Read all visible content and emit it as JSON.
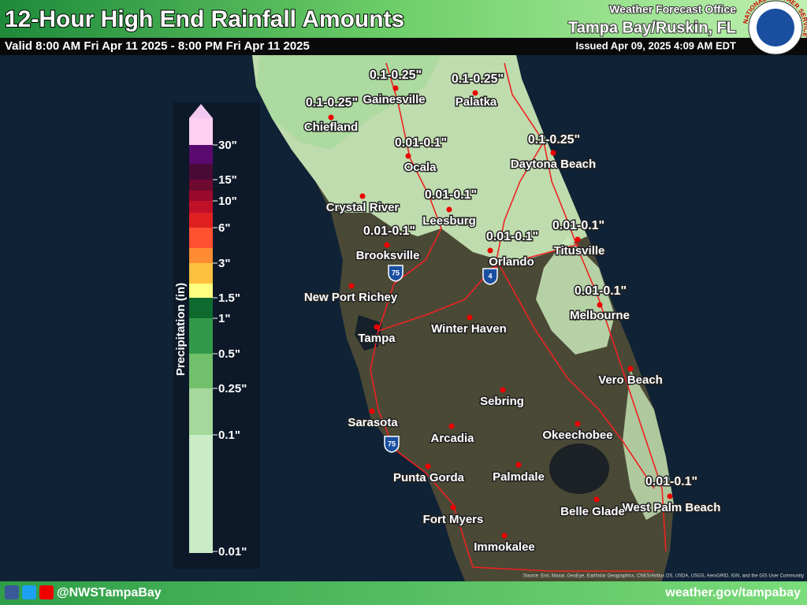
{
  "header": {
    "title": "12-Hour High End Rainfall Amounts",
    "valid": "Valid 8:00 AM Fri Apr 11 2025 - 8:00 PM Fri Apr 11 2025",
    "office": "Weather Forecast Office",
    "location": "Tampa Bay/Ruskin, FL",
    "issued": "Issued Apr 09, 2025 4:09 AM EDT",
    "logo": "NATIONAL WEATHER SERVICE"
  },
  "legend": {
    "title": "Precipitation (in)",
    "labels": [
      "30\"",
      "15\"",
      "10\"",
      "6\"",
      "3\"",
      "1.5\"",
      "1\"",
      "0.5\"",
      "0.25\"",
      "0.1\"",
      "0.01\""
    ]
  },
  "map": {
    "cities": [
      "Gainesville",
      "Palatka",
      "Chiefland",
      "Ocala",
      "Daytona Beach",
      "Crystal River",
      "Leesburg",
      "Brooksville",
      "Orlando",
      "Titusville",
      "New Port Richey",
      "Melbourne",
      "Winter Haven",
      "Tampa",
      "Vero Beach",
      "Sebring",
      "Sarasota",
      "Okeechobee",
      "Arcadia",
      "Punta Gorda",
      "Palmdale",
      "West Palm Beach",
      "Belle Glade",
      "Fort Myers",
      "Immokalee"
    ],
    "amounts": [
      "0.1-0.25\"",
      "0.1-0.25\"",
      "0.1-0.25\"",
      "0.1-0.25\"",
      "0.01-0.1\"",
      "0.01-0.1\"",
      "0.01-0.1\"",
      "0.01-0.1\"",
      "0.01-0.1\"",
      "0.01-0.1\"",
      "0.01-0.1\""
    ],
    "shields": [
      "75",
      "4",
      "75"
    ],
    "source": "Source: Esri, Maxar, GeoEye, Earthstar Geographics, CNES/Airbus DS, USDA, USGS, AeroGRID, IGN, and the GIS User Community"
  },
  "footer": {
    "social": "@NWSTampaBay",
    "url": "weather.gov/tampabay"
  }
}
